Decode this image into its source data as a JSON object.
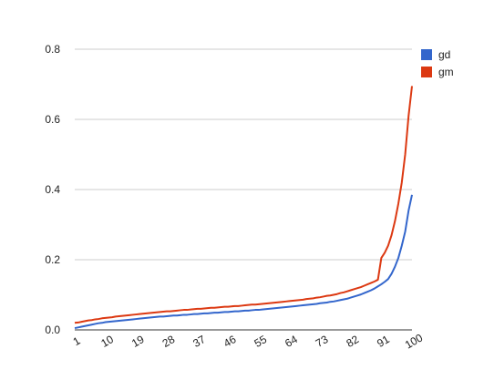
{
  "chart_data": {
    "type": "line",
    "title": "",
    "xlabel": "",
    "ylabel": "",
    "x": [
      1,
      2,
      3,
      4,
      5,
      6,
      7,
      8,
      9,
      10,
      11,
      12,
      13,
      14,
      15,
      16,
      17,
      18,
      19,
      20,
      21,
      22,
      23,
      24,
      25,
      26,
      27,
      28,
      29,
      30,
      31,
      32,
      33,
      34,
      35,
      36,
      37,
      38,
      39,
      40,
      41,
      42,
      43,
      44,
      45,
      46,
      47,
      48,
      49,
      50,
      51,
      52,
      53,
      54,
      55,
      56,
      57,
      58,
      59,
      60,
      61,
      62,
      63,
      64,
      65,
      66,
      67,
      68,
      69,
      70,
      71,
      72,
      73,
      74,
      75,
      76,
      77,
      78,
      79,
      80,
      81,
      82,
      83,
      84,
      85,
      86,
      87,
      88,
      89,
      90,
      91,
      92,
      93,
      94,
      95,
      96,
      97,
      98,
      99,
      100
    ],
    "xticks": [
      "1",
      "10",
      "19",
      "28",
      "37",
      "46",
      "55",
      "64",
      "73",
      "82",
      "91",
      "100"
    ],
    "yticks": [
      "0.0",
      "0.2",
      "0.4",
      "0.6",
      "0.8"
    ],
    "ylim": [
      0,
      0.8
    ],
    "grid": true,
    "legend_position": "right",
    "series": [
      {
        "name": "gd",
        "color": "#3366cc",
        "values": [
          0.005,
          0.007,
          0.009,
          0.011,
          0.013,
          0.015,
          0.017,
          0.019,
          0.02,
          0.022,
          0.023,
          0.024,
          0.025,
          0.026,
          0.027,
          0.028,
          0.029,
          0.03,
          0.031,
          0.032,
          0.033,
          0.034,
          0.035,
          0.036,
          0.037,
          0.038,
          0.038,
          0.039,
          0.04,
          0.041,
          0.041,
          0.042,
          0.043,
          0.043,
          0.044,
          0.045,
          0.045,
          0.046,
          0.047,
          0.047,
          0.048,
          0.049,
          0.049,
          0.05,
          0.051,
          0.051,
          0.052,
          0.053,
          0.053,
          0.054,
          0.055,
          0.055,
          0.056,
          0.057,
          0.057,
          0.058,
          0.059,
          0.06,
          0.061,
          0.062,
          0.063,
          0.064,
          0.065,
          0.066,
          0.067,
          0.068,
          0.069,
          0.07,
          0.071,
          0.072,
          0.073,
          0.074,
          0.076,
          0.077,
          0.078,
          0.08,
          0.081,
          0.083,
          0.085,
          0.087,
          0.089,
          0.092,
          0.095,
          0.098,
          0.101,
          0.105,
          0.109,
          0.113,
          0.118,
          0.124,
          0.13,
          0.137,
          0.145,
          0.16,
          0.18,
          0.205,
          0.24,
          0.28,
          0.34,
          0.385
        ]
      },
      {
        "name": "gm",
        "color": "#dc3912",
        "values": [
          0.02,
          0.021,
          0.023,
          0.025,
          0.027,
          0.028,
          0.03,
          0.031,
          0.033,
          0.034,
          0.035,
          0.036,
          0.038,
          0.039,
          0.04,
          0.041,
          0.042,
          0.043,
          0.044,
          0.045,
          0.046,
          0.047,
          0.048,
          0.049,
          0.05,
          0.051,
          0.052,
          0.053,
          0.053,
          0.054,
          0.055,
          0.056,
          0.057,
          0.057,
          0.058,
          0.059,
          0.06,
          0.06,
          0.061,
          0.062,
          0.063,
          0.063,
          0.064,
          0.065,
          0.066,
          0.066,
          0.067,
          0.068,
          0.068,
          0.069,
          0.07,
          0.071,
          0.072,
          0.072,
          0.073,
          0.074,
          0.075,
          0.076,
          0.077,
          0.078,
          0.079,
          0.08,
          0.081,
          0.082,
          0.083,
          0.084,
          0.085,
          0.086,
          0.088,
          0.089,
          0.09,
          0.092,
          0.093,
          0.095,
          0.097,
          0.098,
          0.1,
          0.102,
          0.105,
          0.107,
          0.11,
          0.113,
          0.116,
          0.119,
          0.122,
          0.126,
          0.13,
          0.134,
          0.138,
          0.143,
          0.205,
          0.22,
          0.24,
          0.27,
          0.31,
          0.36,
          0.42,
          0.5,
          0.61,
          0.695
        ]
      }
    ]
  }
}
